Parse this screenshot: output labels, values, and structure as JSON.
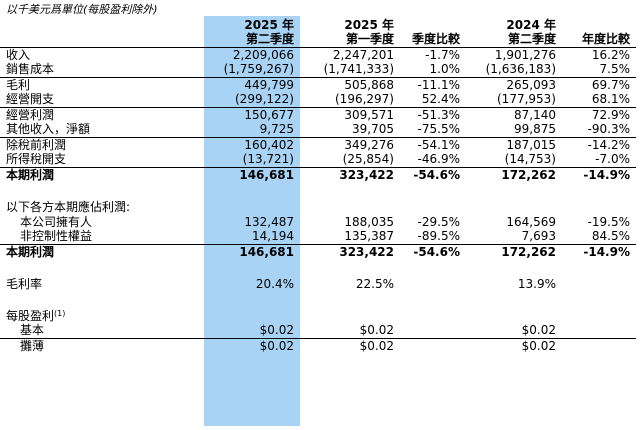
{
  "caption": "以千美元爲單位(每股盈利除外)",
  "headers": [
    {
      "line1": "",
      "line2": ""
    },
    {
      "line1": "2025 年",
      "line2": "第二季度"
    },
    {
      "line1": "2025 年",
      "line2": "第一季度"
    },
    {
      "line1": "",
      "line2": "季度比較"
    },
    {
      "line1": "2024 年",
      "line2": "第二季度"
    },
    {
      "line1": "",
      "line2": "年度比較"
    }
  ],
  "rows": [
    {
      "label": "收入",
      "values": [
        "2,209,066",
        "2,247,201",
        "-1.7%",
        "1,901,276",
        "16.2%"
      ]
    },
    {
      "label": "銷售成本",
      "values": [
        "(1,759,267)",
        "(1,741,333)",
        "1.0%",
        "(1,636,183)",
        "7.5%"
      ]
    },
    {
      "label": "毛利",
      "values": [
        "449,799",
        "505,868",
        "-11.1%",
        "265,093",
        "69.7%"
      ]
    },
    {
      "label": "經營開支",
      "values": [
        "(299,122)",
        "(196,297)",
        "52.4%",
        "(177,953)",
        "68.1%"
      ]
    },
    {
      "label": "經營利潤",
      "values": [
        "150,677",
        "309,571",
        "-51.3%",
        "87,140",
        "72.9%"
      ]
    },
    {
      "label": "其他收入，淨額",
      "values": [
        "9,725",
        "39,705",
        "-75.5%",
        "99,875",
        "-90.3%"
      ]
    },
    {
      "label": "除稅前利潤",
      "values": [
        "160,402",
        "349,276",
        "-54.1%",
        "187,015",
        "-14.2%"
      ]
    },
    {
      "label": "所得稅開支",
      "values": [
        "(13,721)",
        "(25,854)",
        "-46.9%",
        "(14,753)",
        "-7.0%"
      ]
    },
    {
      "label": "本期利潤",
      "values": [
        "146,681",
        "323,422",
        "-54.6%",
        "172,262",
        "-14.9%"
      ]
    }
  ],
  "attribution": {
    "heading": "以下各方本期應佔利潤:",
    "rows": [
      {
        "label": "本公司擁有人",
        "values": [
          "132,487",
          "188,035",
          "-29.5%",
          "164,569",
          "-19.5%"
        ]
      },
      {
        "label": "非控制性權益",
        "values": [
          "14,194",
          "135,387",
          "-89.5%",
          "7,693",
          "84.5%"
        ]
      },
      {
        "label": "本期利潤",
        "values": [
          "146,681",
          "323,422",
          "-54.6%",
          "172,262",
          "-14.9%"
        ]
      }
    ]
  },
  "gross_margin": {
    "label": "毛利率",
    "values": [
      "20.4%",
      "22.5%",
      "",
      "13.9%",
      ""
    ]
  },
  "eps": {
    "heading": "每股盈利",
    "footnote_mark": "(1)",
    "rows": [
      {
        "label": "基本",
        "values": [
          "$0.02",
          "$0.02",
          "",
          "$0.02",
          ""
        ]
      },
      {
        "label": "攤薄",
        "values": [
          "$0.02",
          "$0.02",
          "",
          "$0.02",
          ""
        ]
      }
    ]
  }
}
